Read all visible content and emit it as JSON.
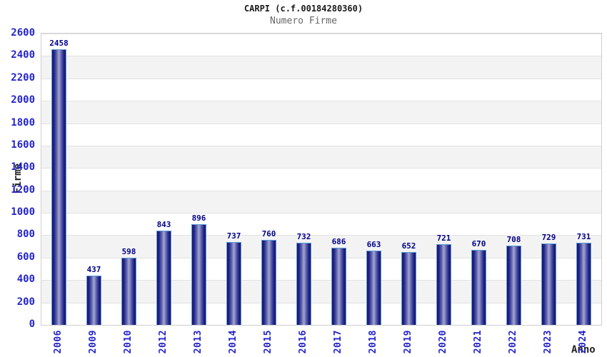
{
  "header": {
    "title": "CARPI (c.f.00184280360)",
    "subtitle": "Numero Firme"
  },
  "chart_data": {
    "type": "bar",
    "title": "CARPI (c.f.00184280360)",
    "subtitle": "Numero Firme",
    "xlabel": "Anno",
    "ylabel": "Firme",
    "categories": [
      "2006",
      "2009",
      "2010",
      "2012",
      "2013",
      "2014",
      "2015",
      "2016",
      "2017",
      "2018",
      "2019",
      "2020",
      "2021",
      "2022",
      "2023",
      "2024"
    ],
    "values": [
      2458,
      437,
      598,
      843,
      896,
      737,
      760,
      732,
      686,
      663,
      652,
      721,
      670,
      708,
      729,
      731
    ],
    "ylim": [
      0,
      2600
    ],
    "ytick_step": 200,
    "yticks": [
      0,
      200,
      400,
      600,
      800,
      1000,
      1200,
      1400,
      1600,
      1800,
      2000,
      2200,
      2400,
      2600
    ],
    "grid": "horizontal-bands",
    "legend": "none",
    "colors": {
      "bar_dark": "#15156a",
      "bar_mid": "#9ba0cf",
      "bar_border": "#5b9bd5",
      "value_label": "#00008c",
      "tick_label": "#2424cc",
      "band_alt": "#f3f3f3",
      "band_main": "#ffffff",
      "gridline": "#e2e2e2",
      "subtitle": "#666666",
      "title": "#1a1a1a"
    }
  }
}
